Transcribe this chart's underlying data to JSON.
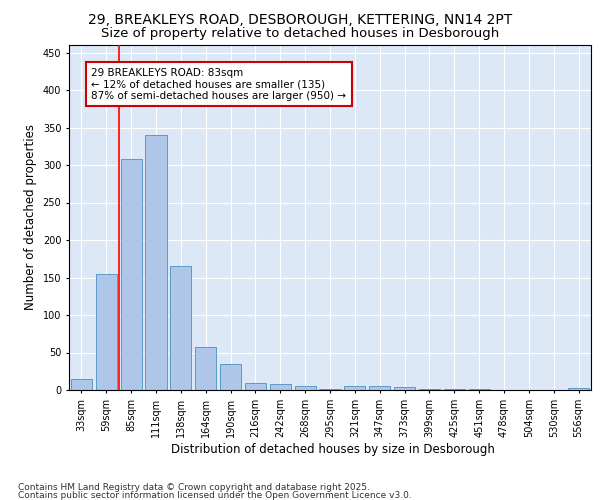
{
  "title_line1": "29, BREAKLEYS ROAD, DESBOROUGH, KETTERING, NN14 2PT",
  "title_line2": "Size of property relative to detached houses in Desborough",
  "xlabel": "Distribution of detached houses by size in Desborough",
  "ylabel": "Number of detached properties",
  "categories": [
    "33sqm",
    "59sqm",
    "85sqm",
    "111sqm",
    "138sqm",
    "164sqm",
    "190sqm",
    "216sqm",
    "242sqm",
    "268sqm",
    "295sqm",
    "321sqm",
    "347sqm",
    "373sqm",
    "399sqm",
    "425sqm",
    "451sqm",
    "478sqm",
    "504sqm",
    "530sqm",
    "556sqm"
  ],
  "values": [
    15,
    155,
    308,
    340,
    165,
    57,
    35,
    10,
    8,
    5,
    1,
    5,
    5,
    4,
    2,
    1,
    1,
    0,
    0,
    0,
    3
  ],
  "bar_color": "#aec6e8",
  "bar_edge_color": "#5a9ac9",
  "redline_x": 1.5,
  "annotation_line1": "29 BREAKLEYS ROAD: 83sqm",
  "annotation_line2": "← 12% of detached houses are smaller (135)",
  "annotation_line3": "87% of semi-detached houses are larger (950) →",
  "annotation_box_color": "#ffffff",
  "annotation_box_edge": "#cc0000",
  "ylim": [
    0,
    460
  ],
  "yticks": [
    0,
    50,
    100,
    150,
    200,
    250,
    300,
    350,
    400,
    450
  ],
  "background_color": "#dce8f5",
  "grid_color": "#ffffff",
  "footer_line1": "Contains HM Land Registry data © Crown copyright and database right 2025.",
  "footer_line2": "Contains public sector information licensed under the Open Government Licence v3.0.",
  "title_fontsize": 10,
  "subtitle_fontsize": 9.5,
  "axis_label_fontsize": 8.5,
  "tick_fontsize": 7,
  "annot_fontsize": 7.5,
  "footer_fontsize": 6.5
}
